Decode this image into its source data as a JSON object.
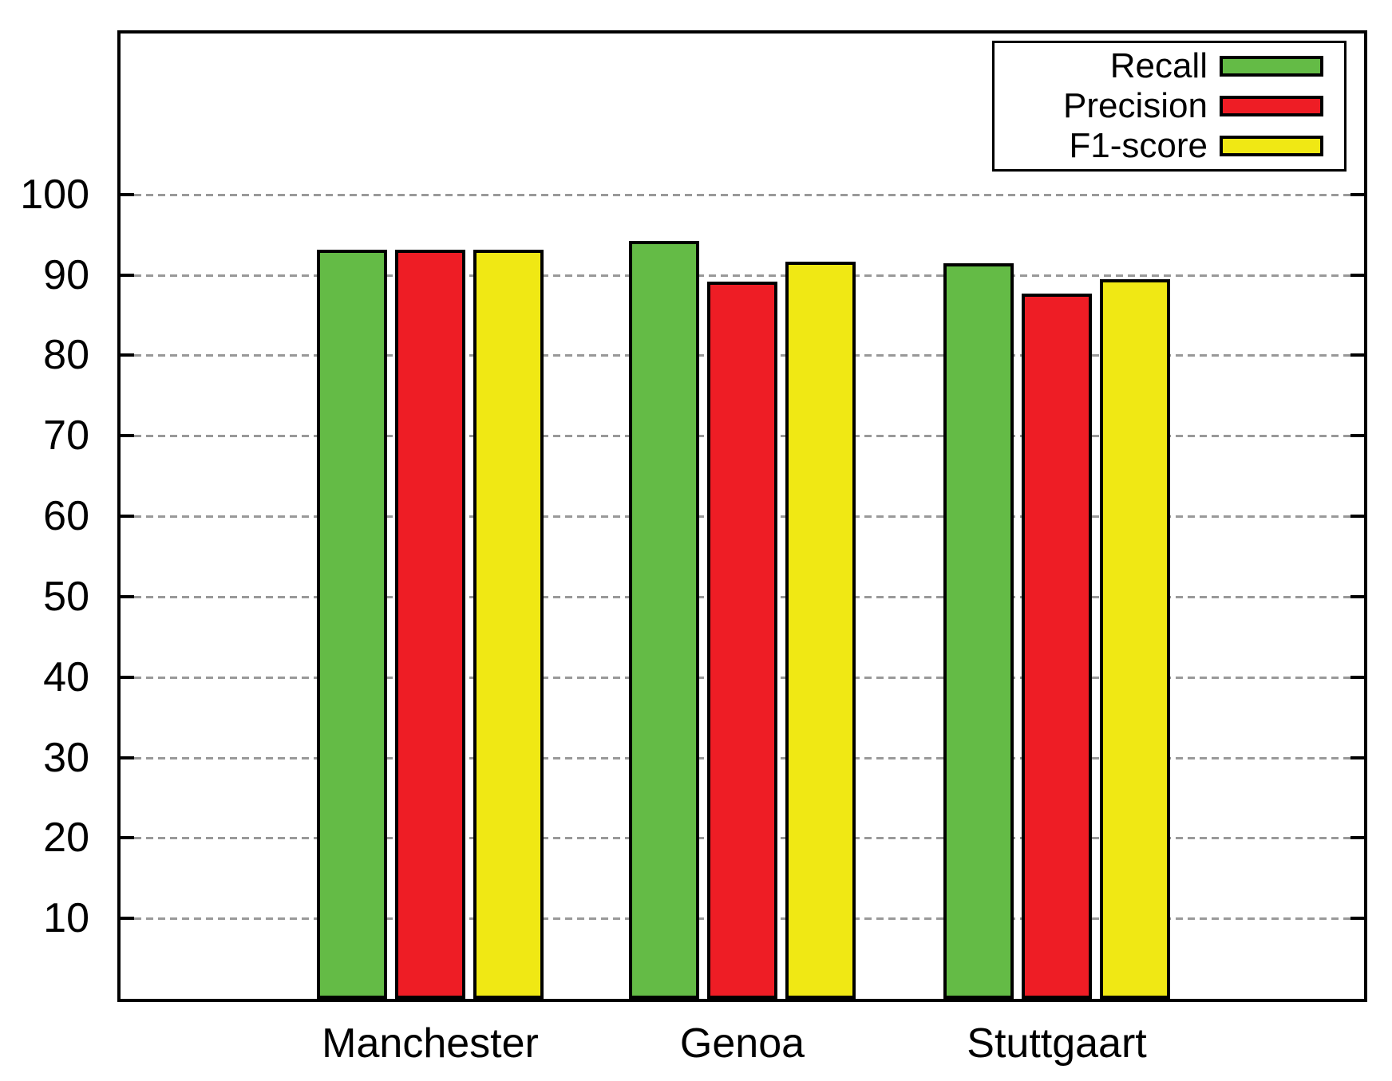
{
  "chart_data": {
    "type": "bar",
    "title": "",
    "xlabel": "",
    "ylabel": "",
    "categories": [
      "Manchester",
      "Genoa",
      "Stuttgaart"
    ],
    "series": [
      {
        "name": "Recall",
        "color": "#64bb46",
        "values": [
          93.1,
          94.2,
          91.4
        ]
      },
      {
        "name": "Precision",
        "color": "#ee1d25",
        "values": [
          93.1,
          89.2,
          87.7
        ]
      },
      {
        "name": "F1-score",
        "color": "#f0e814",
        "values": [
          93.1,
          91.6,
          89.5
        ]
      }
    ],
    "ylim": [
      0,
      120
    ],
    "yticks": [
      10,
      20,
      30,
      40,
      50,
      60,
      70,
      80,
      90,
      100
    ],
    "grid": "horizontal-dashed",
    "legend_position": "top-right",
    "axis_color": "#000000",
    "grid_color": "#999999",
    "background": "#ffffff"
  }
}
